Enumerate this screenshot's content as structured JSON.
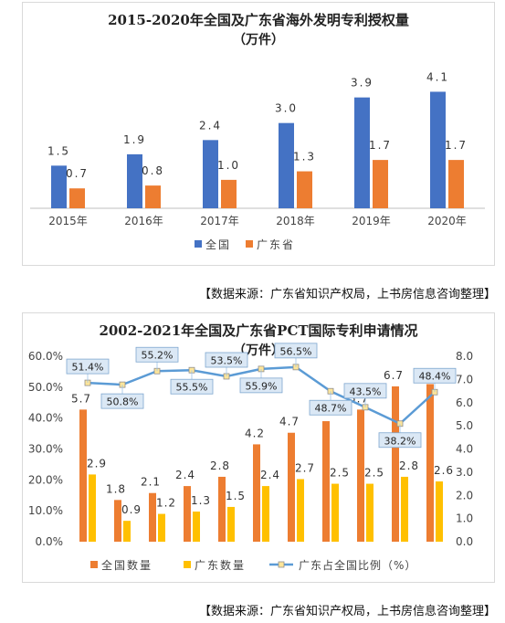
{
  "chart_data": [
    {
      "type": "bar",
      "title": "2015-2020年全国及广东省海外发明专利授权量",
      "subtitle": "（万件）",
      "categories": [
        "2015年",
        "2016年",
        "2017年",
        "2018年",
        "2019年",
        "2020年"
      ],
      "series": [
        {
          "name": "全国",
          "values": [
            1.5,
            1.9,
            2.4,
            3.0,
            3.9,
            4.1
          ],
          "labels": [
            "1.5",
            "1.9",
            "2.4",
            "3.0",
            "3.9",
            "4.1"
          ],
          "color": "#4472C4"
        },
        {
          "name": "广东省",
          "values": [
            0.7,
            0.8,
            1.0,
            1.3,
            1.7,
            1.7
          ],
          "labels": [
            "0.7",
            "0.8",
            "1.0",
            "1.3",
            "1.7",
            "1.7"
          ],
          "color": "#ED7D31"
        }
      ],
      "ylim": [
        0,
        4.5
      ],
      "legend_position": "bottom",
      "grid": false
    },
    {
      "type": "bar",
      "title": "2002-2021年全国及广东省PCT国际专利申请情况",
      "subtitle": "（万件）",
      "categories": [
        "",
        "",
        "",
        "",
        "",
        "",
        "",
        "",
        "",
        "",
        ""
      ],
      "series": [
        {
          "name": "全国数量",
          "values": [
            5.7,
            1.8,
            2.1,
            2.4,
            2.8,
            4.2,
            4.7,
            5.2,
            5.7,
            6.7,
            6.8
          ],
          "labels": [
            "5.7",
            "1.8",
            "2.1",
            "2.4",
            "2.8",
            "4.2",
            "4.7",
            "5.2",
            "5.7",
            "6.7",
            "6.8"
          ],
          "color": "#ED7D31",
          "axis": "right"
        },
        {
          "name": "广东数量",
          "values": [
            2.9,
            0.9,
            1.2,
            1.3,
            1.5,
            2.4,
            2.7,
            2.5,
            2.5,
            2.8,
            2.6
          ],
          "labels": [
            "2.9",
            "0.9",
            "1.2",
            "1.3",
            "1.5",
            "2.4",
            "2.7",
            "2.5",
            "2.5",
            "2.8",
            "2.6"
          ],
          "color": "#FFC000",
          "axis": "right"
        },
        {
          "name": "广东占全国比例（%）",
          "type": "line",
          "values": [
            51.4,
            50.8,
            55.2,
            55.5,
            53.5,
            55.9,
            56.5,
            48.7,
            43.5,
            38.2,
            48.4
          ],
          "labels": [
            "51.4%",
            "50.8%",
            "55.2%",
            "55.5%",
            "53.5%",
            "55.9%",
            "56.5%",
            "48.7%",
            "43.5%",
            "38.2%",
            "48.4%"
          ],
          "color": "#5B9BD5",
          "axis": "left"
        }
      ],
      "y_left_ticks": [
        "0.0%",
        "10.0%",
        "20.0%",
        "30.0%",
        "40.0%",
        "50.0%",
        "60.0%"
      ],
      "y_right_ticks": [
        "0.0",
        "1.0",
        "2.0",
        "3.0",
        "4.0",
        "5.0",
        "6.0",
        "7.0",
        "8.0"
      ],
      "y_left_lim": [
        0,
        60
      ],
      "y_right_lim": [
        0,
        8
      ],
      "legend_position": "bottom",
      "grid": false
    }
  ],
  "source_note_1": "【数据来源：广东省知识产权局，上书房信息咨询整理】",
  "source_note_2": "【数据来源：广东省知识产权局，上书房信息咨询整理】"
}
